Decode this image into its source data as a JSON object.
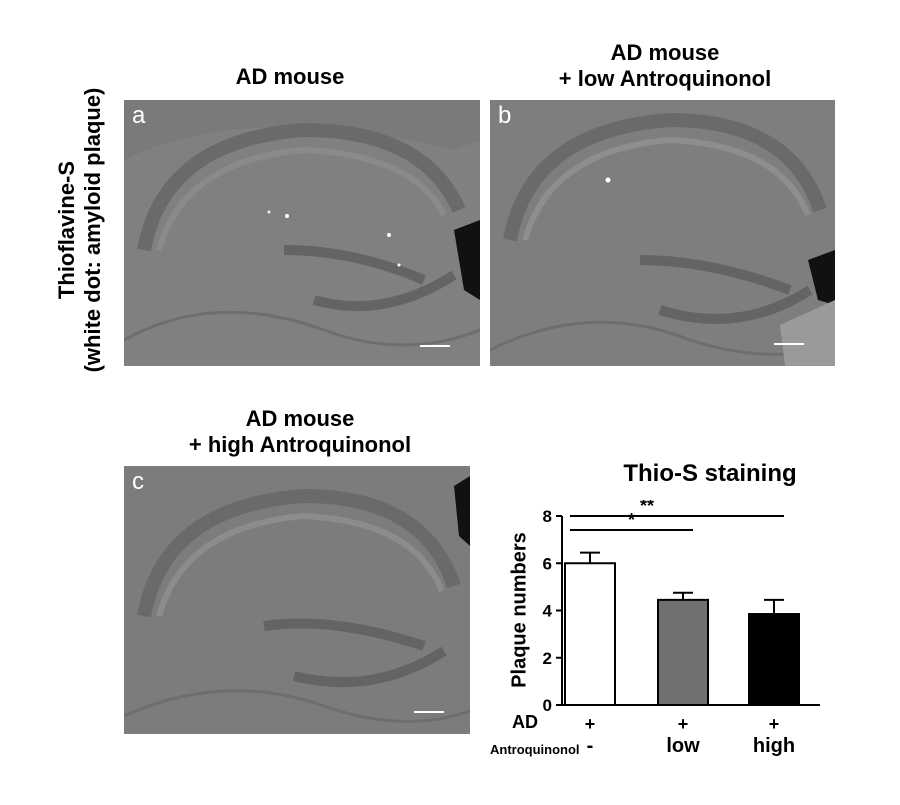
{
  "side_label": {
    "line1": "Thioflavine-S",
    "line2": "(white dot: amyloid plaque)"
  },
  "panels": [
    {
      "letter": "a",
      "title_line1": "AD mouse",
      "title_line2": ""
    },
    {
      "letter": "b",
      "title_line1": "AD mouse",
      "title_line2": "+ low Antroquinonol"
    },
    {
      "letter": "c",
      "title_line1": "AD mouse",
      "title_line2": "+ high Antroquinonol"
    }
  ],
  "chart_data": {
    "type": "bar",
    "title": "Thio-S staining",
    "ylabel": "Plaque numbers",
    "ylim": [
      0,
      8
    ],
    "yticks": [
      "0",
      "2",
      "4",
      "6",
      "8"
    ],
    "categories": [
      "AD + / Antroquinonol -",
      "AD + / Antroquinonol low",
      "AD + / Antroquinonol high"
    ],
    "values": [
      6.0,
      4.45,
      3.85
    ],
    "errors": [
      0.45,
      0.3,
      0.6
    ],
    "bar_colors": [
      "#ffffff",
      "#707070",
      "#000000"
    ],
    "significance": [
      {
        "from": 0,
        "to": 1,
        "label": "*"
      },
      {
        "from": 0,
        "to": 2,
        "label": "**"
      }
    ],
    "condition_rows": [
      {
        "label": "AD",
        "values": [
          "+",
          "+",
          "+"
        ]
      },
      {
        "label": "Antroquinonol",
        "values": [
          "-",
          "low",
          "high"
        ]
      }
    ]
  }
}
